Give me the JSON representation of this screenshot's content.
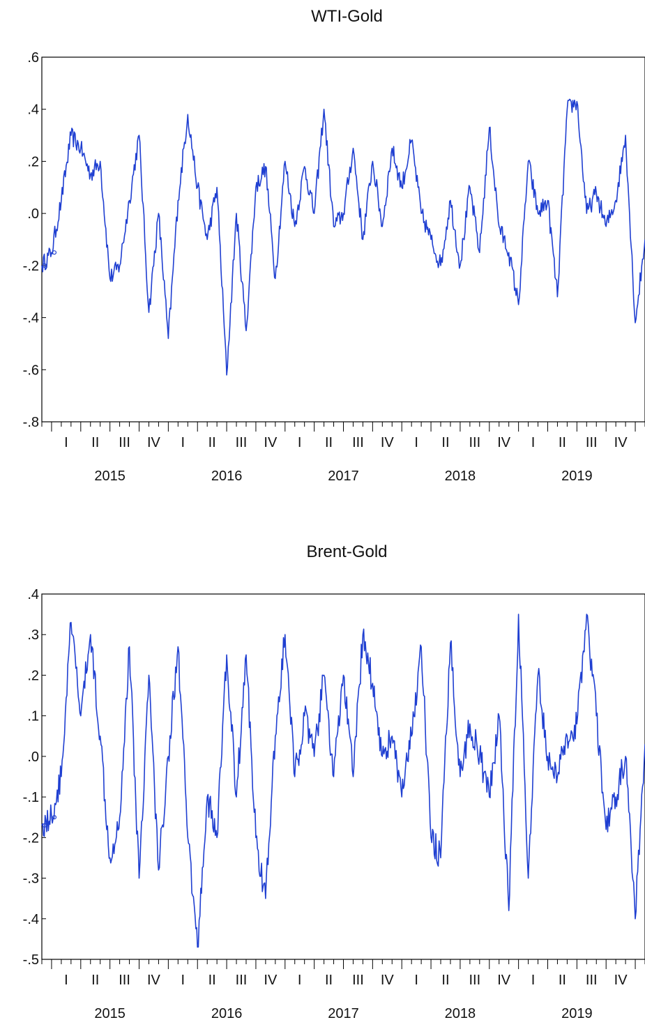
{
  "chart_data": [
    {
      "type": "line",
      "title": "WTI-Gold",
      "xlabel": "",
      "ylabel": "",
      "ylim": [
        -0.8,
        0.6
      ],
      "y_ticks": [
        ".6",
        ".4",
        ".2",
        ".0",
        "-.2",
        "-.4",
        "-.6",
        "-.8"
      ],
      "y_tick_values": [
        0.6,
        0.4,
        0.2,
        0.0,
        -0.2,
        -0.4,
        -0.6,
        -0.8
      ],
      "x_range": [
        "2014-12",
        "2020-02"
      ],
      "quarter_labels": [
        "I",
        "II",
        "III",
        "IV",
        "I",
        "II",
        "III",
        "IV",
        "I",
        "II",
        "III",
        "IV",
        "I",
        "II",
        "III",
        "IV",
        "I",
        "II",
        "III",
        "IV",
        "I"
      ],
      "year_labels": [
        "2015",
        "2016",
        "2017",
        "2018",
        "2019"
      ],
      "color": "#1f3fd1",
      "series": [
        {
          "x": [
            "2014-12",
            "2015-01",
            "2015-02",
            "2015-03",
            "2015-04",
            "2015-05",
            "2015-06",
            "2015-07",
            "2015-08",
            "2015-09",
            "2015-10",
            "2015-11",
            "2015-12",
            "2016-01",
            "2016-02",
            "2016-03",
            "2016-04",
            "2016-05",
            "2016-06",
            "2016-07",
            "2016-08",
            "2016-09",
            "2016-10",
            "2016-11",
            "2016-12",
            "2017-01",
            "2017-02",
            "2017-03",
            "2017-04",
            "2017-05",
            "2017-06",
            "2017-07",
            "2017-08",
            "2017-09",
            "2017-10",
            "2017-11",
            "2017-12",
            "2018-01",
            "2018-02",
            "2018-03",
            "2018-04",
            "2018-05",
            "2018-06",
            "2018-07",
            "2018-08",
            "2018-09",
            "2018-10",
            "2018-11",
            "2018-12",
            "2019-01",
            "2019-02",
            "2019-03",
            "2019-04",
            "2019-05",
            "2019-06",
            "2019-07",
            "2019-08",
            "2019-09",
            "2019-10",
            "2019-11",
            "2019-12",
            "2020-01",
            "2020-02"
          ],
          "values": [
            -0.2,
            -0.15,
            0.05,
            0.3,
            0.25,
            0.15,
            0.2,
            -0.25,
            -0.2,
            0.05,
            0.3,
            -0.38,
            0.0,
            -0.48,
            0.05,
            0.38,
            0.1,
            -0.1,
            0.1,
            -0.62,
            0.0,
            -0.45,
            0.1,
            0.18,
            -0.25,
            0.2,
            -0.05,
            0.18,
            0.0,
            0.4,
            -0.05,
            0.0,
            0.25,
            -0.1,
            0.2,
            -0.05,
            0.25,
            0.1,
            0.28,
            0.0,
            -0.1,
            -0.2,
            0.05,
            -0.2,
            0.1,
            -0.15,
            0.33,
            -0.05,
            -0.15,
            -0.35,
            0.2,
            0.0,
            0.05,
            -0.32,
            0.4,
            0.43,
            0.0,
            0.08,
            -0.05,
            0.05,
            0.3,
            -0.42,
            -0.1
          ]
        }
      ]
    },
    {
      "type": "line",
      "title": "Brent-Gold",
      "xlabel": "",
      "ylabel": "",
      "ylim": [
        -0.5,
        0.4
      ],
      "y_ticks": [
        ".4",
        ".3",
        ".2",
        ".1",
        ".0",
        "-.1",
        "-.2",
        "-.3",
        "-.4",
        "-.5"
      ],
      "y_tick_values": [
        0.4,
        0.3,
        0.2,
        0.1,
        0.0,
        -0.1,
        -0.2,
        -0.3,
        -0.4,
        -0.5
      ],
      "x_range": [
        "2014-12",
        "2020-02"
      ],
      "quarter_labels": [
        "I",
        "II",
        "III",
        "IV",
        "I",
        "II",
        "III",
        "IV",
        "I",
        "II",
        "III",
        "IV",
        "I",
        "II",
        "III",
        "IV",
        "I",
        "II",
        "III",
        "IV",
        "I"
      ],
      "year_labels": [
        "2015",
        "2016",
        "2017",
        "2018",
        "2019"
      ],
      "color": "#1f3fd1",
      "series": [
        {
          "x": [
            "2014-12",
            "2015-01",
            "2015-02",
            "2015-03",
            "2015-04",
            "2015-05",
            "2015-06",
            "2015-07",
            "2015-08",
            "2015-09",
            "2015-10",
            "2015-11",
            "2015-12",
            "2016-01",
            "2016-02",
            "2016-03",
            "2016-04",
            "2016-05",
            "2016-06",
            "2016-07",
            "2016-08",
            "2016-09",
            "2016-10",
            "2016-11",
            "2016-12",
            "2017-01",
            "2017-02",
            "2017-03",
            "2017-04",
            "2017-05",
            "2017-06",
            "2017-07",
            "2017-08",
            "2017-09",
            "2017-10",
            "2017-11",
            "2017-12",
            "2018-01",
            "2018-02",
            "2018-03",
            "2018-04",
            "2018-05",
            "2018-06",
            "2018-07",
            "2018-08",
            "2018-09",
            "2018-10",
            "2018-11",
            "2018-12",
            "2019-01",
            "2019-02",
            "2019-03",
            "2019-04",
            "2019-05",
            "2019-06",
            "2019-07",
            "2019-08",
            "2019-09",
            "2019-10",
            "2019-11",
            "2019-12",
            "2020-01",
            "2020-02"
          ],
          "values": [
            -0.17,
            -0.15,
            -0.05,
            0.33,
            0.1,
            0.3,
            0.05,
            -0.25,
            -0.15,
            0.27,
            -0.3,
            0.2,
            -0.28,
            0.0,
            0.27,
            -0.2,
            -0.47,
            -0.1,
            -0.2,
            0.25,
            -0.1,
            0.25,
            -0.2,
            -0.35,
            0.05,
            0.3,
            -0.05,
            0.1,
            0.0,
            0.2,
            -0.05,
            0.2,
            -0.05,
            0.3,
            0.18,
            0.0,
            0.05,
            -0.1,
            0.05,
            0.27,
            -0.2,
            -0.25,
            0.28,
            -0.05,
            0.08,
            0.0,
            -0.1,
            0.1,
            -0.38,
            0.35,
            -0.3,
            0.2,
            0.0,
            -0.05,
            0.05,
            0.08,
            0.35,
            0.1,
            -0.18,
            -0.1,
            0.0,
            -0.4,
            0.03
          ]
        }
      ]
    }
  ]
}
